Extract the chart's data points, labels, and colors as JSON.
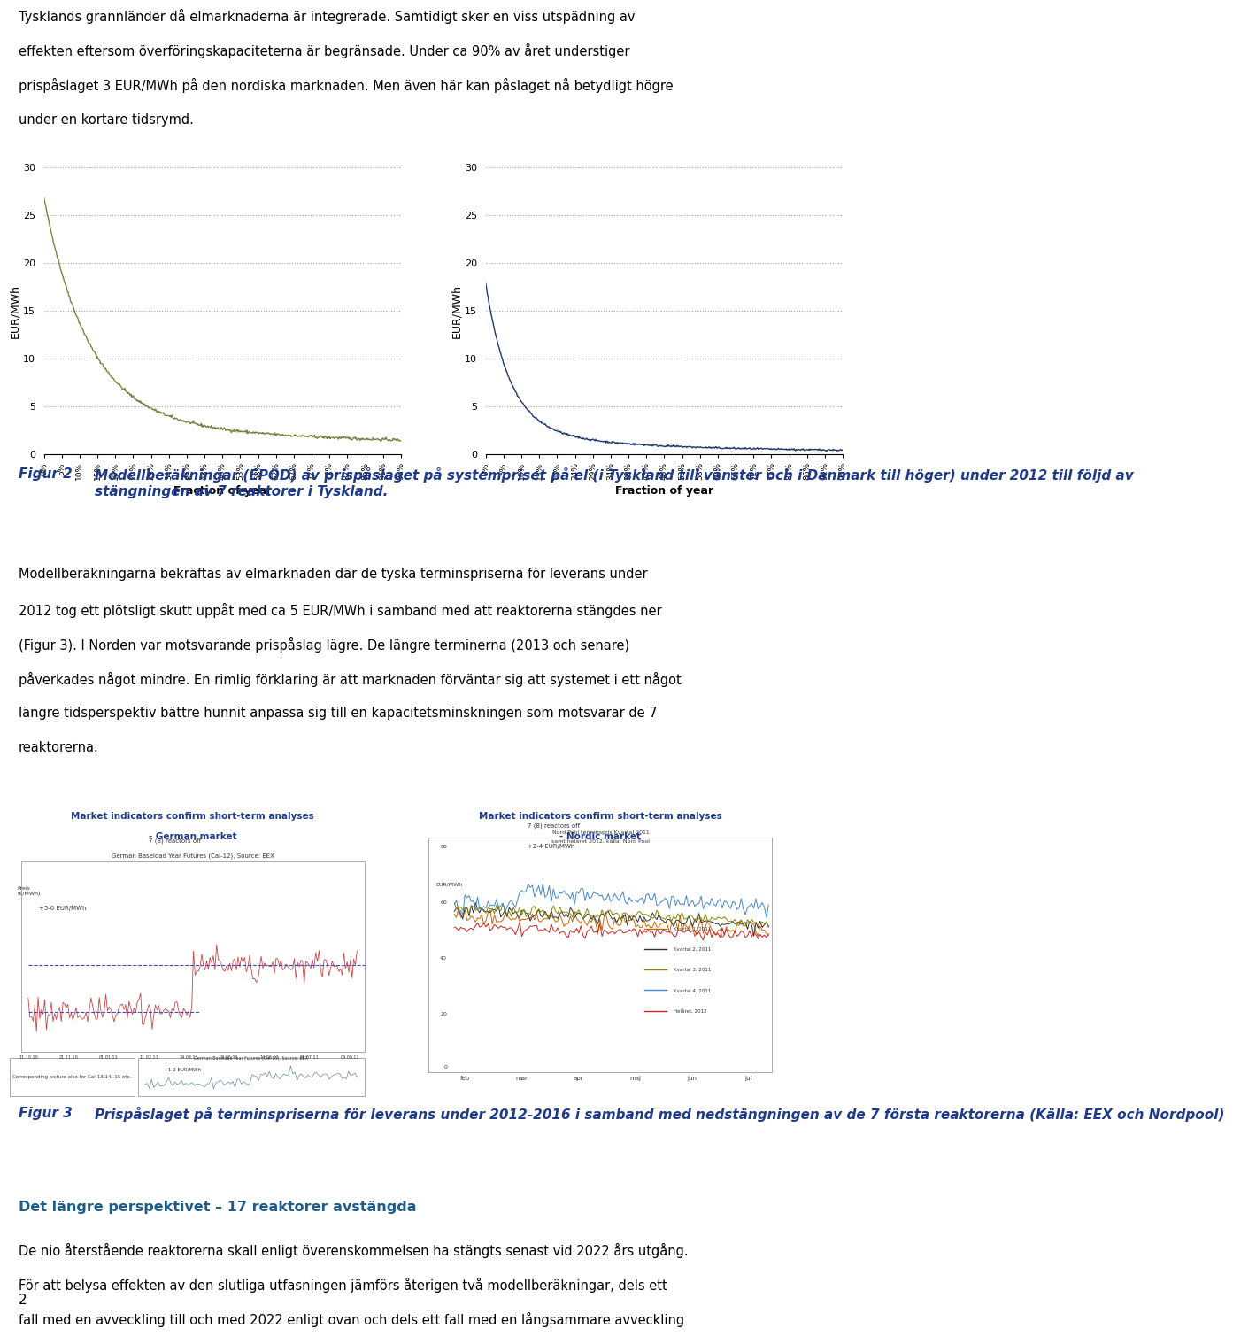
{
  "page_text_top": [
    "Tysklands grannländer då elmarknaderna är integrerade. Samtidigt sker en viss utspädning av",
    "effekten eftersom överföringskapaciteterna är begränsade. Under ca 90% av året understiger",
    "prispåslaget 3 EUR/MWh på den nordiska marknaden. Men även här kan påslaget nå betydligt högre",
    "under en kortare tidsrymd."
  ],
  "chart1_color": "#808040",
  "chart2_color": "#1e3a6e",
  "chart_ylim": [
    0,
    30
  ],
  "chart_yticks": [
    0,
    5,
    10,
    15,
    20,
    25,
    30
  ],
  "chart_xlabel": "Fraction of year",
  "chart_ylabel": "EUR/MWh",
  "chart_xtick_labels": [
    "0%",
    "5%",
    "10%",
    "15%",
    "19%",
    "24%",
    "29%",
    "34%",
    "38%",
    "43%",
    "48%",
    "53%",
    "58%",
    "62%",
    "67%",
    "72%",
    "77%",
    "82%",
    "86%",
    "91%",
    "96%"
  ],
  "fig2_label": "Figur 2",
  "fig2_caption": "Modellberäkningar (EPOD) av prispåslaget på systempriset på el (i Tyskland till vänster och i Danmark till höger) under 2012 till följd av stängningen av 7 reaktorer i Tyskland.",
  "body_text": [
    "Modellberäkningarna bekräftas av elmarknaden där de tyska terminspriserna för leverans under",
    "2012 tog ett plötsligt skutt uppåt med ca 5 EUR/MWh i samband med att reaktorerna stängdes ner",
    "(Figur 3). I Norden var motsvarande prispåslag lägre. De längre terminerna (2013 och senare)",
    "påverkades något mindre. En rimlig förklaring är att marknaden förväntar sig att systemet i ett något",
    "längre tidsperspektiv bättre hunnit anpassa sig till en kapacitetsminskningen som motsvarar de 7",
    "reaktorerna."
  ],
  "fig3_german_title1": "Market indicators confirm short-term analyses",
  "fig3_german_title2": "- German market",
  "fig3_nordic_title1": "Market indicators confirm short-term analyses",
  "fig3_nordic_title2": "- Nordic market",
  "fig3_label": "Figur 3",
  "fig3_caption": "Prispåslaget på terminspriserna för leverans under 2012-2016 i samband med nedstängningen av de 7 första reaktorerna (Källa: EEX och Nordpool)",
  "section_title": "Det längre perspektivet – 17 reaktorer avstängda",
  "section_body": [
    "De nio återstående reaktorerna skall enligt överenskommelsen ha stängts senast vid 2022 års utgång.",
    "För att belysa effekten av den slutliga utfasningen jämförs återigen två modellberäkningar, dels ett",
    "fall med en avveckling till och med 2022 enligt ovan och dels ett fall med en långsammare avveckling"
  ],
  "page_number": "2",
  "background_color": "#ffffff",
  "text_color": "#000000",
  "grid_color": "#a0a0a0",
  "figcaption_color": "#1e3a8a"
}
